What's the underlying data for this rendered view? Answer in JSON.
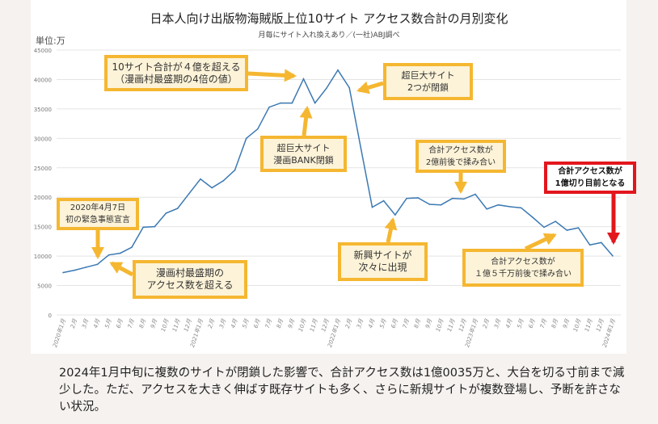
{
  "chart_data": {
    "type": "line",
    "title": "日本人向け出版物海賊版上位10サイト アクセス数合計の月別変化",
    "subtitle": "月毎にサイト入れ換えあり／(一社)ABJ調べ",
    "ylabel": "単位:万",
    "xlabel": "",
    "ylim": [
      0,
      45000
    ],
    "yticks": [
      0,
      5000,
      10000,
      15000,
      20000,
      25000,
      30000,
      35000,
      40000,
      45000
    ],
    "grid": true,
    "categories": [
      "2020年1月",
      "2月",
      "3月",
      "4月",
      "5月",
      "6月",
      "7月",
      "8月",
      "9月",
      "10月",
      "11月",
      "12月",
      "2021年1月",
      "2月",
      "3月",
      "4月",
      "5月",
      "6月",
      "7月",
      "8月",
      "9月",
      "10月",
      "11月",
      "12月",
      "2022年1月",
      "2月",
      "3月",
      "4月",
      "5月",
      "6月",
      "7月",
      "8月",
      "9月",
      "10月",
      "11月",
      "12月",
      "2023年1月",
      "2月",
      "3月",
      "4月",
      "5月",
      "6月",
      "7月",
      "8月",
      "9月",
      "10月",
      "11月",
      "12月",
      "2024年1月"
    ],
    "series": [
      {
        "color": "#3b79b3",
        "values": [
          7200,
          7600,
          8100,
          8600,
          10200,
          10500,
          11500,
          14900,
          15000,
          17300,
          18100,
          20600,
          23100,
          21600,
          22800,
          24600,
          30000,
          31600,
          35300,
          36000,
          36000,
          40100,
          36000,
          38500,
          41600,
          38600,
          28400,
          18300,
          19400,
          17000,
          19800,
          19900,
          18800,
          18700,
          19800,
          19700,
          20500,
          18000,
          18700,
          18400,
          18200,
          16600,
          14900,
          15900,
          14400,
          14800,
          11900,
          12300,
          10035
        ]
      }
    ],
    "annotations": [
      {
        "text": "10サイト合計が４億を超える\n（漫画村最盛期の4倍の値）",
        "style": "orange"
      },
      {
        "text": "超巨大サイト\n2つが閉鎖",
        "style": "orange"
      },
      {
        "text": "超巨大サイト\n漫画BANK閉鎖",
        "style": "orange"
      },
      {
        "text": "合計アクセス数が\n2億前後で揉み合い",
        "style": "orange"
      },
      {
        "text": "合計アクセス数が\n1億切り目前となる",
        "style": "red"
      },
      {
        "text": "2020年4月7日\n初の緊急事態宣言",
        "style": "orange"
      },
      {
        "text": "漫画村最盛期の\nアクセス数を超える",
        "style": "orange"
      },
      {
        "text": "新興サイトが\n次々に出現",
        "style": "orange"
      },
      {
        "text": "合計アクセス数が\n１億５千万前後で揉み合い",
        "style": "orange"
      }
    ]
  },
  "colors": {
    "accent": "#f5b731",
    "alert": "#e3161d",
    "line": "#3b79b3"
  },
  "caption": "2024年1月中旬に複数のサイトが閉鎖した影響で、合計アクセス数は1億0035万と、大台を切る寸前まで減少した。ただ、アクセスを大きく伸ばす既存サイトも多く、さらに新規サイトが複数登場し、予断を許さない状況。"
}
